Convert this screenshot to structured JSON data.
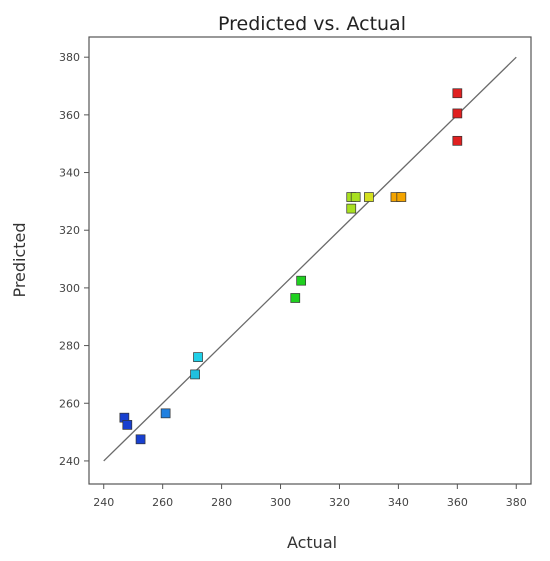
{
  "chart_data": {
    "type": "scatter",
    "title": "Predicted vs. Actual",
    "xlabel": "Actual",
    "ylabel": "Predicted",
    "xlim": [
      235,
      385
    ],
    "ylim": [
      232,
      387
    ],
    "xticks": [
      240,
      260,
      280,
      300,
      320,
      340,
      360,
      380
    ],
    "yticks": [
      240,
      260,
      280,
      300,
      320,
      340,
      360,
      380
    ],
    "grid": false,
    "reference_line": {
      "from": [
        240,
        240
      ],
      "to": [
        380,
        380
      ],
      "color": "#6a6a6a"
    },
    "points": [
      {
        "x": 360,
        "y": 367.5,
        "color": "#e02020"
      },
      {
        "x": 360,
        "y": 360.5,
        "color": "#e02020"
      },
      {
        "x": 360,
        "y": 351.0,
        "color": "#e02020"
      },
      {
        "x": 339,
        "y": 331.5,
        "color": "#f4a400"
      },
      {
        "x": 341,
        "y": 331.5,
        "color": "#f4a400"
      },
      {
        "x": 330,
        "y": 331.5,
        "color": "#d4e020"
      },
      {
        "x": 324,
        "y": 331.5,
        "color": "#a8e020"
      },
      {
        "x": 325.5,
        "y": 331.5,
        "color": "#a8e020"
      },
      {
        "x": 324,
        "y": 327.5,
        "color": "#a8e020"
      },
      {
        "x": 307,
        "y": 302.5,
        "color": "#20d020"
      },
      {
        "x": 305,
        "y": 296.5,
        "color": "#20d020"
      },
      {
        "x": 272,
        "y": 276.0,
        "color": "#20d0e8"
      },
      {
        "x": 271,
        "y": 270.0,
        "color": "#20c0e0"
      },
      {
        "x": 261,
        "y": 256.5,
        "color": "#2080e0"
      },
      {
        "x": 247,
        "y": 255.0,
        "color": "#1840d0"
      },
      {
        "x": 248,
        "y": 252.5,
        "color": "#1840d0"
      },
      {
        "x": 252.5,
        "y": 247.5,
        "color": "#1840d0"
      }
    ]
  }
}
